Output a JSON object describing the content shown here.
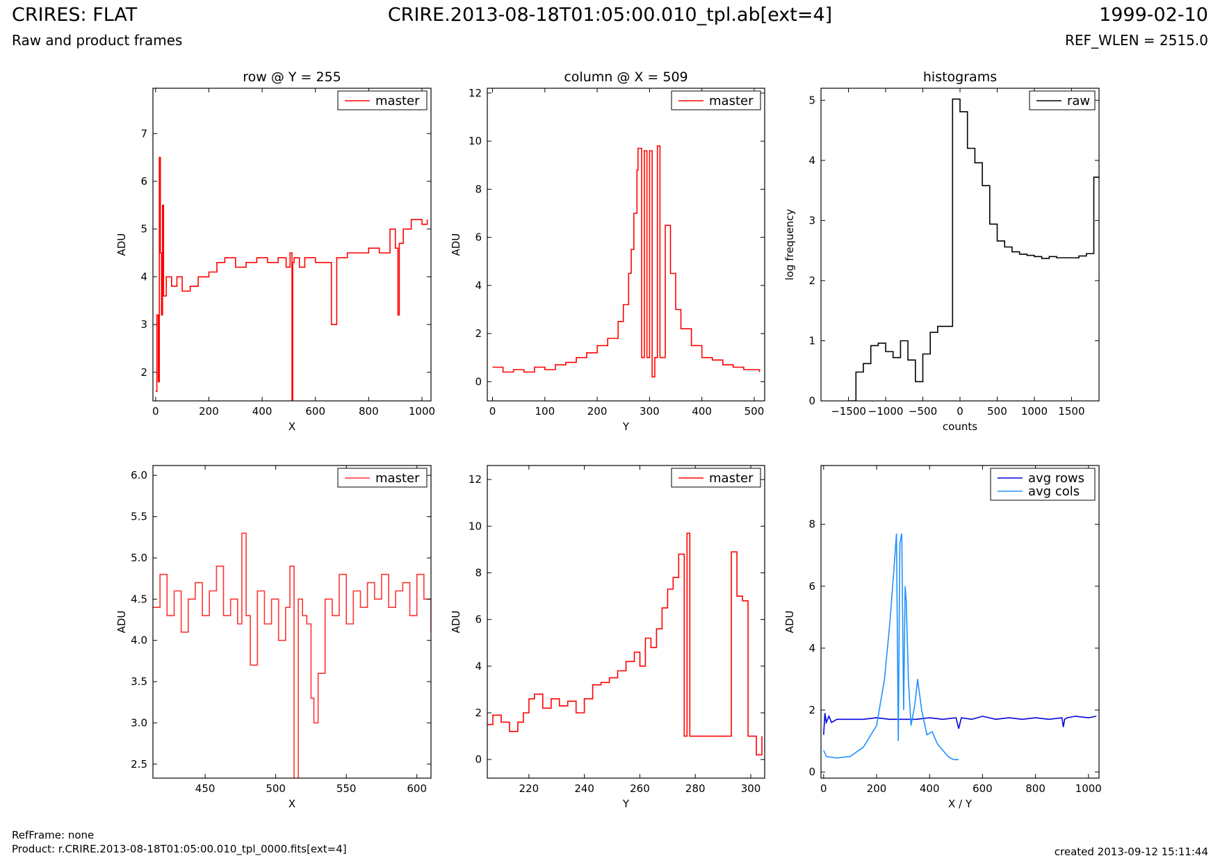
{
  "header": {
    "title": "CRIRES: FLAT",
    "file": "CRIRE.2013-08-18T01:05:00.010_tpl.ab[ext=4]",
    "date": "1999-02-10",
    "subtitle": "Raw and product frames",
    "ref_wlen": "REF_WLEN = 2515.0"
  },
  "footer": {
    "refframe": "RefFrame: none",
    "product": "Product: r.CRIRE.2013-08-18T01:05:00.010_tpl_0000.fits[ext=4]",
    "created": "created 2013-09-12 15:11:44"
  },
  "colors": {
    "master": "#ff0000",
    "master_zoom": "#ff3333",
    "raw": "#000000",
    "avg_rows": "#0000dd",
    "avg_cols": "#1e90ff"
  },
  "chart_data": [
    {
      "id": "row",
      "type": "line",
      "title": "row @ Y = 255",
      "xlabel": "X",
      "ylabel": "ADU",
      "xlim": [
        -10,
        1034
      ],
      "ylim": [
        1.4,
        7.95
      ],
      "xticks": [
        0,
        200,
        400,
        600,
        800,
        1000
      ],
      "yticks": [
        2,
        3,
        4,
        5,
        6,
        7
      ],
      "legend": [
        "master"
      ],
      "series": [
        {
          "name": "master",
          "color": "#ff0000",
          "style": "step",
          "x": [
            0,
            5,
            10,
            14,
            18,
            22,
            26,
            30,
            40,
            60,
            80,
            100,
            130,
            160,
            200,
            230,
            260,
            300,
            340,
            380,
            420,
            460,
            490,
            505,
            512,
            515,
            520,
            540,
            560,
            600,
            640,
            660,
            680,
            720,
            760,
            800,
            840,
            880,
            900,
            910,
            915,
            930,
            960,
            1000,
            1020
          ],
          "y": [
            1.6,
            3.2,
            1.8,
            6.5,
            4.5,
            3.2,
            5.5,
            3.6,
            4.0,
            3.8,
            4.0,
            3.7,
            3.8,
            4.0,
            4.1,
            4.3,
            4.4,
            4.2,
            4.3,
            4.4,
            4.3,
            4.4,
            4.2,
            4.5,
            1.4,
            4.3,
            4.4,
            4.2,
            4.4,
            4.3,
            4.3,
            3.0,
            4.4,
            4.5,
            4.5,
            4.6,
            4.5,
            5.0,
            4.6,
            3.2,
            4.7,
            5.0,
            5.2,
            5.1,
            5.2
          ]
        }
      ]
    },
    {
      "id": "column",
      "type": "line",
      "title": "column @ X = 509",
      "xlabel": "Y",
      "ylabel": "ADU",
      "xlim": [
        -10,
        520
      ],
      "ylim": [
        -0.8,
        12.2
      ],
      "xticks": [
        0,
        100,
        200,
        300,
        400,
        500
      ],
      "yticks": [
        0,
        2,
        4,
        6,
        8,
        10,
        12
      ],
      "legend": [
        "master"
      ],
      "series": [
        {
          "name": "master",
          "color": "#ff0000",
          "style": "step",
          "x": [
            0,
            20,
            40,
            60,
            80,
            100,
            120,
            140,
            160,
            180,
            200,
            220,
            240,
            250,
            260,
            265,
            270,
            276,
            278,
            285,
            290,
            295,
            300,
            305,
            310,
            315,
            320,
            330,
            340,
            350,
            360,
            380,
            400,
            420,
            440,
            460,
            480,
            500,
            510
          ],
          "y": [
            0.6,
            0.4,
            0.5,
            0.4,
            0.6,
            0.5,
            0.7,
            0.8,
            1.0,
            1.2,
            1.5,
            1.8,
            2.5,
            3.2,
            4.5,
            5.5,
            7.0,
            8.8,
            9.7,
            1.0,
            9.6,
            1.0,
            9.6,
            0.2,
            1.0,
            9.8,
            1.0,
            6.5,
            4.5,
            3.0,
            2.2,
            1.5,
            1.0,
            0.9,
            0.7,
            0.6,
            0.5,
            0.5,
            0.4
          ]
        }
      ]
    },
    {
      "id": "hist",
      "type": "line",
      "title": "histograms",
      "xlabel": "counts",
      "ylabel": "log frequency",
      "xlim": [
        -1870,
        1870
      ],
      "ylim": [
        0,
        5.2
      ],
      "xticks": [
        -1500,
        -1000,
        -500,
        0,
        500,
        1000,
        1500
      ],
      "yticks": [
        0,
        1,
        2,
        3,
        4,
        5
      ],
      "legend": [
        "raw"
      ],
      "series": [
        {
          "name": "raw",
          "color": "#000000",
          "style": "step",
          "x": [
            -1500,
            -1400,
            -1300,
            -1200,
            -1100,
            -1000,
            -900,
            -800,
            -700,
            -600,
            -500,
            -400,
            -300,
            -200,
            -100,
            0,
            100,
            200,
            300,
            400,
            500,
            600,
            700,
            800,
            900,
            1000,
            1100,
            1200,
            1300,
            1400,
            1500,
            1600,
            1700,
            1800,
            1870
          ],
          "y": [
            0,
            0.48,
            0.62,
            0.92,
            0.96,
            0.82,
            0.72,
            1.0,
            0.68,
            0.32,
            0.78,
            1.14,
            1.24,
            1.24,
            5.02,
            4.81,
            4.2,
            3.96,
            3.58,
            2.94,
            2.66,
            2.56,
            2.48,
            2.44,
            2.42,
            2.4,
            2.37,
            2.4,
            2.38,
            2.38,
            2.38,
            2.41,
            2.45,
            3.72,
            3.72
          ]
        }
      ]
    },
    {
      "id": "row_zoom",
      "type": "line",
      "title": "",
      "xlabel": "X",
      "ylabel": "ADU",
      "xlim": [
        413,
        610
      ],
      "ylim": [
        2.33,
        6.12
      ],
      "xticks": [
        450,
        500,
        550,
        600
      ],
      "yticks": [
        2.5,
        3.0,
        3.5,
        4.0,
        4.5,
        5.0,
        5.5,
        6.0
      ],
      "legend": [
        "master"
      ],
      "series": [
        {
          "name": "master",
          "color": "#ff3333",
          "style": "step",
          "x": [
            413,
            418,
            423,
            428,
            433,
            438,
            443,
            448,
            453,
            458,
            463,
            468,
            473,
            476,
            479,
            482,
            487,
            492,
            497,
            502,
            507,
            510,
            513,
            516,
            519,
            522,
            525,
            527,
            530,
            535,
            540,
            545,
            550,
            555,
            560,
            565,
            570,
            575,
            580,
            585,
            590,
            595,
            600,
            605,
            610
          ],
          "y": [
            4.4,
            4.8,
            4.3,
            4.6,
            4.1,
            4.5,
            4.7,
            4.3,
            4.6,
            4.9,
            4.3,
            4.5,
            4.2,
            5.3,
            4.3,
            3.7,
            4.6,
            4.2,
            4.5,
            4.0,
            4.4,
            4.9,
            2.3,
            4.5,
            4.3,
            4.2,
            3.3,
            3.0,
            3.6,
            4.5,
            4.3,
            4.8,
            4.2,
            4.6,
            4.4,
            4.7,
            4.5,
            4.8,
            4.4,
            4.6,
            4.7,
            4.3,
            4.8,
            4.5,
            4.1
          ]
        }
      ]
    },
    {
      "id": "col_zoom",
      "type": "line",
      "title": "",
      "xlabel": "Y",
      "ylabel": "ADU",
      "xlim": [
        205,
        305
      ],
      "ylim": [
        -0.8,
        12.6
      ],
      "xticks": [
        220,
        240,
        260,
        280,
        300
      ],
      "yticks": [
        0,
        2,
        4,
        6,
        8,
        10,
        12
      ],
      "legend": [
        "master"
      ],
      "series": [
        {
          "name": "master",
          "color": "#ff0000",
          "style": "step",
          "x": [
            205,
            207,
            210,
            213,
            216,
            218,
            220,
            222,
            225,
            228,
            231,
            234,
            237,
            240,
            243,
            246,
            249,
            252,
            255,
            258,
            260,
            262,
            264,
            266,
            268,
            270,
            272,
            274,
            276,
            277,
            278,
            280,
            285,
            290,
            293,
            295,
            297,
            299,
            302,
            304
          ],
          "y": [
            1.5,
            1.9,
            1.6,
            1.2,
            1.6,
            2.0,
            2.6,
            2.8,
            2.2,
            2.6,
            2.3,
            2.5,
            2.0,
            2.6,
            3.2,
            3.3,
            3.5,
            3.8,
            4.2,
            4.6,
            4.0,
            5.2,
            4.8,
            5.6,
            6.5,
            7.3,
            7.8,
            8.8,
            1.0,
            9.7,
            1.0,
            1.0,
            1.0,
            1.0,
            8.9,
            7.0,
            6.8,
            1.0,
            0.2,
            1.0
          ]
        }
      ]
    },
    {
      "id": "avg",
      "type": "line",
      "title": "",
      "xlabel": "X / Y",
      "ylabel": "ADU",
      "xlim": [
        -10,
        1040
      ],
      "ylim": [
        -0.2,
        9.9
      ],
      "xticks": [
        0,
        200,
        400,
        600,
        800,
        1000
      ],
      "yticks": [
        0,
        2,
        4,
        6,
        8
      ],
      "legend": [
        "avg rows",
        "avg cols"
      ],
      "series": [
        {
          "name": "avg rows",
          "color": "#0000dd",
          "style": "line",
          "x": [
            0,
            5,
            10,
            20,
            30,
            50,
            100,
            150,
            200,
            250,
            300,
            350,
            400,
            450,
            500,
            510,
            520,
            560,
            600,
            650,
            700,
            750,
            800,
            850,
            900,
            905,
            910,
            920,
            950,
            1000,
            1030
          ],
          "y": [
            1.2,
            1.9,
            1.6,
            1.8,
            1.6,
            1.7,
            1.7,
            1.7,
            1.75,
            1.7,
            1.7,
            1.7,
            1.75,
            1.7,
            1.75,
            1.4,
            1.75,
            1.7,
            1.8,
            1.7,
            1.75,
            1.7,
            1.75,
            1.7,
            1.75,
            1.45,
            1.7,
            1.75,
            1.8,
            1.75,
            1.8
          ]
        },
        {
          "name": "avg cols",
          "color": "#1e90ff",
          "style": "line",
          "x": [
            0,
            10,
            50,
            100,
            150,
            200,
            230,
            250,
            265,
            275,
            282,
            288,
            295,
            302,
            308,
            312,
            320,
            330,
            345,
            355,
            370,
            390,
            410,
            430,
            450,
            470,
            490,
            510
          ],
          "y": [
            0.7,
            0.5,
            0.45,
            0.5,
            0.8,
            1.5,
            3.0,
            4.8,
            6.5,
            7.7,
            1.0,
            7.4,
            7.7,
            2.0,
            6.0,
            5.5,
            3.0,
            1.5,
            2.2,
            3.0,
            2.0,
            1.2,
            1.3,
            0.9,
            0.7,
            0.5,
            0.4,
            0.4
          ]
        }
      ]
    }
  ]
}
